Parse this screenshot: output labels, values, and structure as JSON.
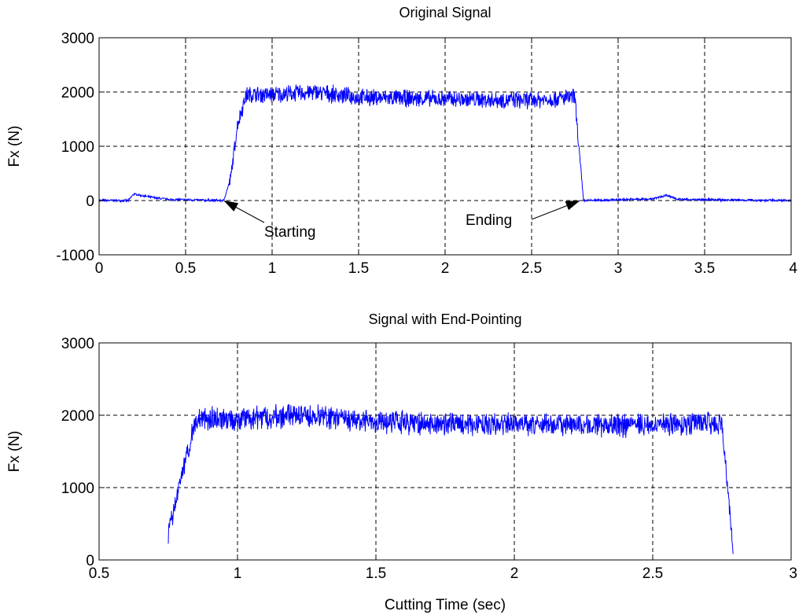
{
  "chart_data": [
    {
      "type": "line",
      "title": "Original Signal",
      "xlabel": "",
      "ylabel": "Fx (N)",
      "xlim": [
        0,
        4
      ],
      "ylim": [
        -1000,
        3000
      ],
      "xticks": [
        "0",
        "0.5",
        "1",
        "1.5",
        "2",
        "2.5",
        "3",
        "3.5",
        "4"
      ],
      "yticks": [
        "-1000",
        "0",
        "1000",
        "2000",
        "3000"
      ],
      "grid": true,
      "line_color": "#0000ff",
      "signal_profile": [
        [
          0.0,
          0
        ],
        [
          0.17,
          0
        ],
        [
          0.2,
          120
        ],
        [
          0.3,
          60
        ],
        [
          0.4,
          20
        ],
        [
          0.72,
          0
        ],
        [
          0.76,
          400
        ],
        [
          0.8,
          1400
        ],
        [
          0.85,
          1950
        ],
        [
          1.0,
          1950
        ],
        [
          1.25,
          2000
        ],
        [
          1.5,
          1900
        ],
        [
          2.0,
          1870
        ],
        [
          2.5,
          1850
        ],
        [
          2.75,
          1900
        ],
        [
          2.78,
          700
        ],
        [
          2.8,
          0
        ],
        [
          3.2,
          30
        ],
        [
          3.28,
          100
        ],
        [
          3.35,
          20
        ],
        [
          4.0,
          0
        ]
      ],
      "noise_amplitude": {
        "active": 180,
        "idle": 25
      },
      "annotations": [
        {
          "text": "Starting",
          "points_to": [
            0.72,
            0
          ]
        },
        {
          "text": "Ending",
          "points_to": [
            2.78,
            0
          ]
        }
      ]
    },
    {
      "type": "line",
      "title": "Signal with End-Pointing",
      "xlabel": "Cutting Time (sec)",
      "ylabel": "Fx (N)",
      "xlim": [
        0.5,
        3
      ],
      "ylim": [
        0,
        3000
      ],
      "xticks": [
        "0.5",
        "1",
        "1.5",
        "2",
        "2.5",
        "3"
      ],
      "yticks": [
        "0",
        "1000",
        "2000",
        "3000"
      ],
      "grid": true,
      "line_color": "#0000ff",
      "signal_profile": [
        [
          0.75,
          350
        ],
        [
          0.8,
          1200
        ],
        [
          0.85,
          1950
        ],
        [
          1.0,
          1950
        ],
        [
          1.25,
          2000
        ],
        [
          1.5,
          1900
        ],
        [
          2.0,
          1870
        ],
        [
          2.5,
          1860
        ],
        [
          2.75,
          1900
        ],
        [
          2.78,
          600
        ],
        [
          2.79,
          100
        ]
      ],
      "noise_amplitude": {
        "active": 180,
        "idle": 60
      }
    }
  ]
}
